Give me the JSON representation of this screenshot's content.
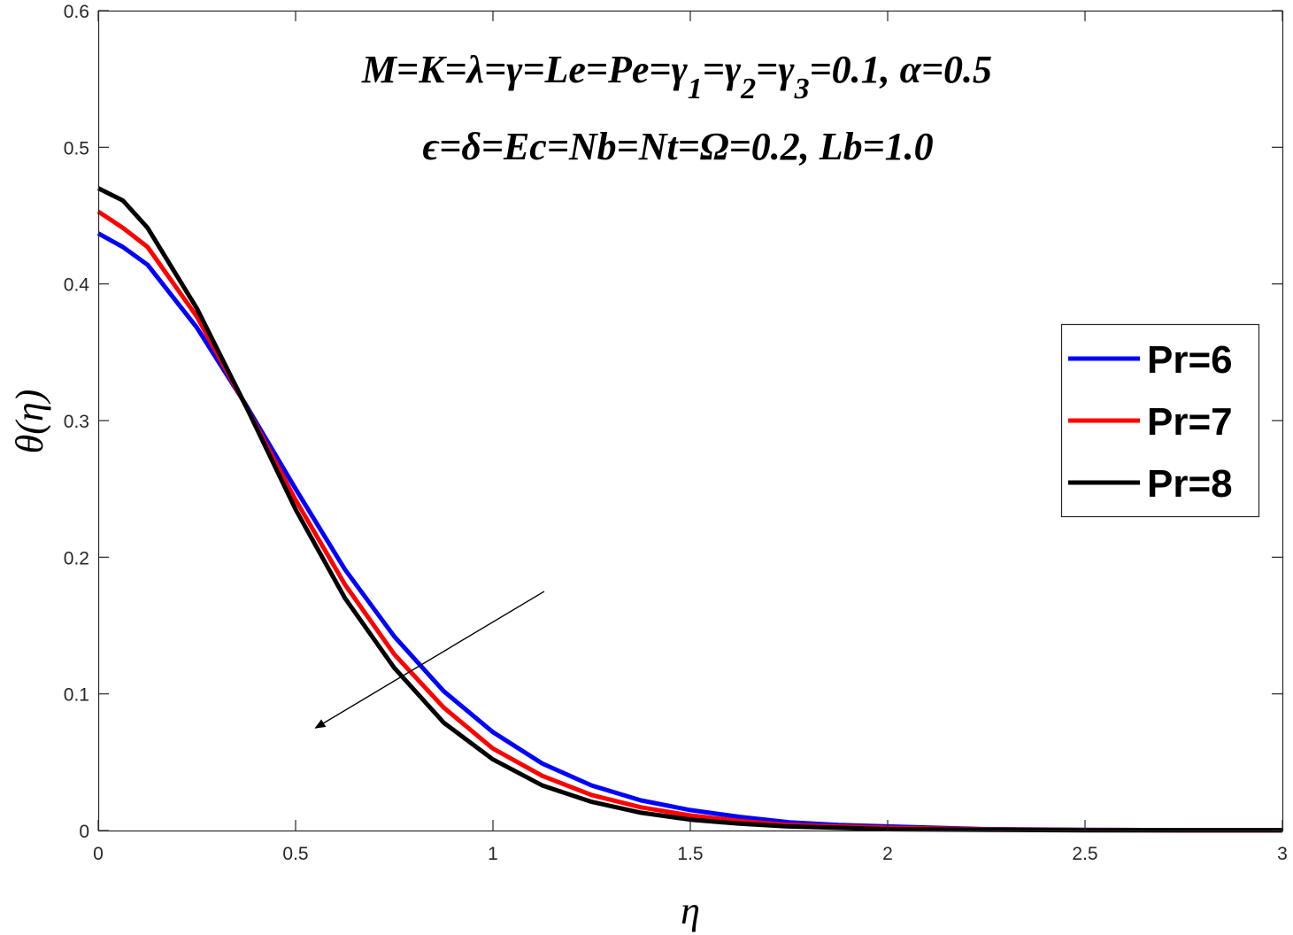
{
  "chart_data": {
    "type": "line",
    "xlabel": "η",
    "ylabel": "θ(η)",
    "xlim": [
      0,
      3
    ],
    "ylim": [
      0,
      0.6
    ],
    "x_ticks": [
      "0",
      "0.5",
      "1",
      "1.5",
      "2",
      "2.5",
      "3"
    ],
    "y_ticks": [
      "0",
      "0.1",
      "0.2",
      "0.3",
      "0.4",
      "0.5",
      "0.6"
    ],
    "grid": false,
    "legend_position": "right",
    "annotations": {
      "line1": "M=K=λ=γ=Le=Pe=γ1=γ2=γ3=0.1, α=0.5",
      "line1_parts": {
        "a": "M=K=λ=γ=Le=Pe=γ",
        "s1": "1",
        "b": "=γ",
        "s2": "2",
        "c": "=γ",
        "s3": "3",
        "d": "=0.1, α=0.5"
      },
      "line2": "ϵ=δ=Ec=Nb=Nt=Ω=0.2, Lb=1.0",
      "arrow": {
        "from": [
          1.13,
          0.175
        ],
        "to": [
          0.55,
          0.075
        ]
      }
    },
    "x": [
      0,
      0.0625,
      0.125,
      0.25,
      0.375,
      0.5,
      0.625,
      0.75,
      0.875,
      1.0,
      1.125,
      1.25,
      1.375,
      1.5,
      1.625,
      1.75,
      1.875,
      2.0,
      2.25,
      2.5,
      2.75,
      3.0
    ],
    "series": [
      {
        "name": "Pr=6",
        "color": "#0000ff",
        "values": [
          0.437,
          0.427,
          0.414,
          0.368,
          0.311,
          0.25,
          0.191,
          0.142,
          0.102,
          0.072,
          0.049,
          0.033,
          0.022,
          0.015,
          0.01,
          0.006,
          0.004,
          0.003,
          0.001,
          0.0005,
          0.0002,
          0.0001
        ]
      },
      {
        "name": "Pr=7",
        "color": "#ff0000",
        "values": [
          0.453,
          0.441,
          0.427,
          0.376,
          0.31,
          0.242,
          0.18,
          0.129,
          0.09,
          0.06,
          0.04,
          0.026,
          0.017,
          0.011,
          0.007,
          0.004,
          0.003,
          0.002,
          0.0008,
          0.0003,
          0.0001,
          0.0001
        ]
      },
      {
        "name": "Pr=8",
        "color": "#000000",
        "values": [
          0.47,
          0.461,
          0.441,
          0.382,
          0.31,
          0.235,
          0.17,
          0.119,
          0.079,
          0.052,
          0.033,
          0.021,
          0.013,
          0.008,
          0.005,
          0.003,
          0.002,
          0.001,
          0.0005,
          0.0002,
          0.0001,
          0.0001
        ]
      }
    ]
  }
}
